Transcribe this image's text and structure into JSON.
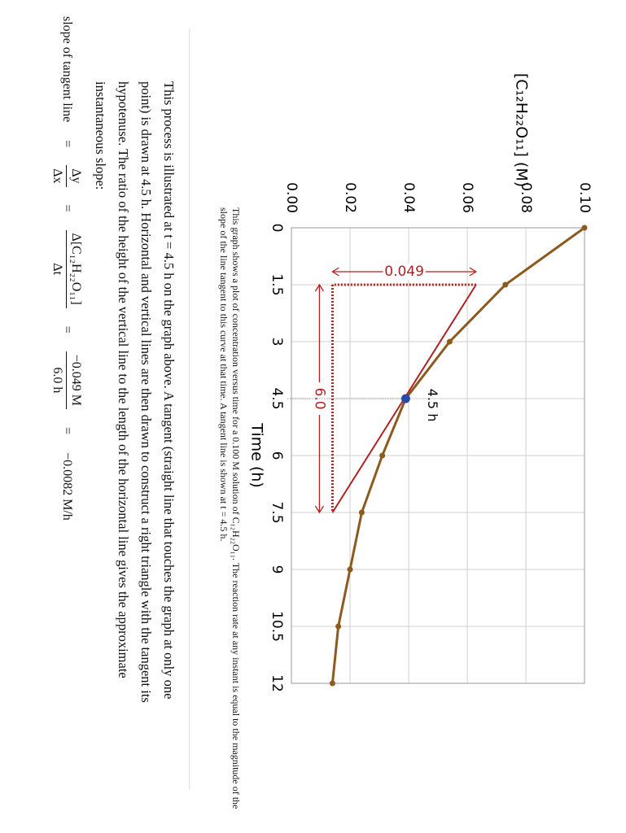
{
  "chart_data": {
    "type": "line",
    "y_label": "[C₁₂H₂₂O₁₁] (M)",
    "x_label": "Time (h)",
    "x": [
      0,
      1.5,
      3,
      4.5,
      6,
      7.5,
      9,
      10.5,
      12
    ],
    "series": [
      {
        "name": "[C₁₂H₂₂O₁₁]",
        "color": "#8b5a1e",
        "values": [
          0.1,
          0.073,
          0.054,
          0.039,
          0.031,
          0.024,
          0.02,
          0.016,
          0.014
        ]
      }
    ],
    "xlim": [
      0,
      12
    ],
    "xticks": [
      0,
      1.5,
      3,
      4.5,
      6,
      7.5,
      9,
      10.5,
      12
    ],
    "ylim": [
      0,
      0.1
    ],
    "yticks": [
      {
        "value": 0,
        "label": "0.00"
      },
      {
        "value": 0.02,
        "label": "0.02"
      },
      {
        "value": 0.04,
        "label": "0.04"
      },
      {
        "value": 0.06,
        "label": "0.06"
      },
      {
        "value": 0.08,
        "label": "0.08"
      },
      {
        "value": 0.1,
        "label": "0.10"
      }
    ],
    "grid": true,
    "tangent": {
      "color": "#b22222",
      "x": [
        1.5,
        7.5
      ],
      "y": [
        0.063,
        0.014
      ]
    },
    "delta_y_label": "0.049",
    "delta_x_label": "6.0",
    "point_label": "4.5 h"
  },
  "caption": "This graph shows a plot of concentration versus time for a 0.100 M solution of C₁₂H₂₂O₁₁. The reaction rate at any instant is equal to the magnitude of the slope of the line tangent to this curve at that time. A tangent line is shown at t = 4.5 h.",
  "paragraph": "This process is illustrated at t = 4.5 h on the graph above. A tangent (straight line that touches the graph at only one point) is drawn at 4.5 h. Horizontal and vertical lines are then drawn to construct a right triangle with the tangent its hypotenuse. The ratio of the height of the vertical line to the length of the horizontal line gives the approximate instantaneous slope:",
  "equation": {
    "lhs": "slope of tangent line",
    "eq": "=",
    "f1_num": "Δy",
    "f1_den": "Δx",
    "f2_num": "Δ[C₁₂H₂₂O₁₁]",
    "f2_den": "Δt",
    "f3_num": "−0.049 M",
    "f3_den": "6.0 h",
    "result": "−0.0082 M/h"
  }
}
